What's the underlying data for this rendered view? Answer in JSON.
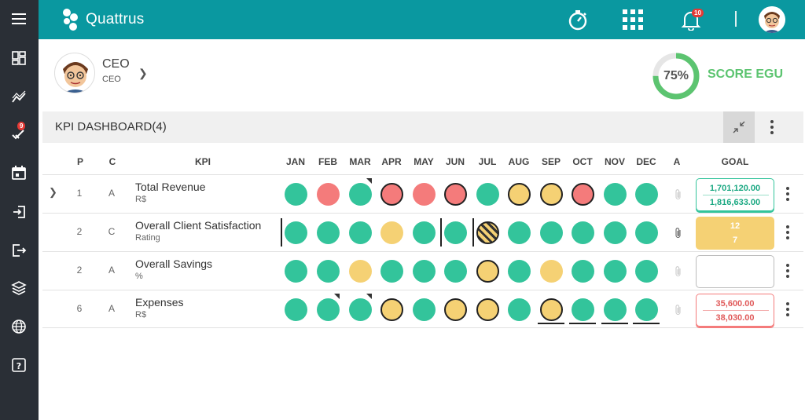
{
  "app": {
    "name": "Quattrus"
  },
  "sidebar": {
    "items": [
      {
        "icon": "menu-icon"
      },
      {
        "icon": "dashboard-icon"
      },
      {
        "icon": "chart-trend-icon"
      },
      {
        "icon": "tasks-check-icon",
        "badge": "9"
      },
      {
        "icon": "calendar-icon"
      },
      {
        "icon": "login-icon"
      },
      {
        "icon": "logout-icon"
      },
      {
        "icon": "layers-icon"
      },
      {
        "icon": "globe-icon"
      },
      {
        "icon": "help-icon"
      }
    ]
  },
  "topbar": {
    "timer_icon": "stopwatch-icon",
    "apps_icon": "grid-apps-icon",
    "notifications_icon": "bell-icon",
    "notifications_count": "10",
    "user_icon": "avatar"
  },
  "profile": {
    "name": "CEO",
    "role": "CEO"
  },
  "score": {
    "percent": "75%",
    "value": 0.75,
    "label": "SCORE EGU",
    "color": "#5cc470"
  },
  "panel": {
    "title": "KPI DASHBOARD(4)"
  },
  "columns": {
    "p": "P",
    "c": "C",
    "kpi": "KPI",
    "months": [
      "JAN",
      "FEB",
      "MAR",
      "APR",
      "MAY",
      "JUN",
      "JUL",
      "AUG",
      "SEP",
      "OCT",
      "NOV",
      "DEC"
    ],
    "a": "A",
    "goal": "GOAL"
  },
  "rows": [
    {
      "p": "1",
      "c": "A",
      "name": "Total Revenue",
      "unit": "R$",
      "goal_top": "1,701,120.00",
      "goal_bottom": "1,816,633.00",
      "goal_color": "#33c49b",
      "statuses": [
        "green",
        "red",
        "green",
        "red-ring",
        "red",
        "red-ring",
        "green",
        "yellow-ring",
        "yellow-ring",
        "red-ring",
        "green",
        "green"
      ]
    },
    {
      "p": "2",
      "c": "C",
      "name": "Overall Client Satisfaction",
      "unit": "Rating",
      "goal_top": "12",
      "goal_bottom": "7",
      "goal_color": "#f5d174",
      "statuses": [
        "green",
        "green",
        "green",
        "yellow",
        "green",
        "green",
        "striped",
        "green",
        "green",
        "green",
        "green",
        "green"
      ]
    },
    {
      "p": "2",
      "c": "A",
      "name": "Overall Savings",
      "unit": "%",
      "goal_top": "",
      "goal_bottom": "",
      "statuses": [
        "green",
        "green",
        "yellow",
        "green",
        "green",
        "green",
        "yellow-ring",
        "green",
        "yellow",
        "green",
        "green",
        "green"
      ]
    },
    {
      "p": "6",
      "c": "A",
      "name": "Expenses",
      "unit": "R$",
      "goal_top": "35,600.00",
      "goal_bottom": "38,030.00",
      "goal_color": "#f47b7b",
      "statuses": [
        "green",
        "green",
        "green",
        "yellow-ring",
        "green",
        "yellow-ring",
        "yellow-ring",
        "green",
        "yellow-ring",
        "green",
        "green",
        "green"
      ]
    }
  ]
}
